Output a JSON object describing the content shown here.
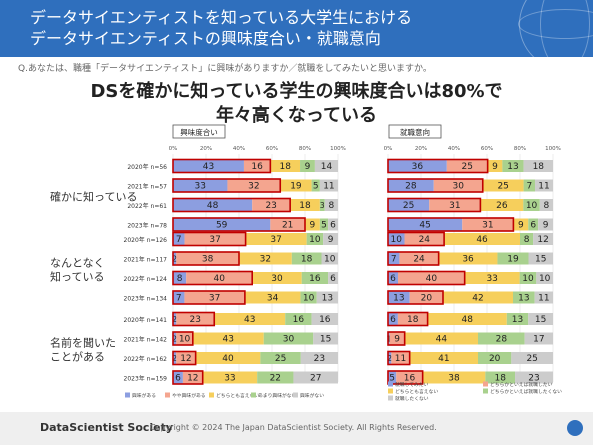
{
  "header": {
    "title_line1": "データサイエンティストを知っている大学生における",
    "title_line2": "データサイエンティストの興味度合い・就職意向"
  },
  "question": "Q.あなたは、職種「データサイエンティスト」に興味がありますか／就職をしてみたいと思いますか。",
  "headline": {
    "line1": "DSを確かに知っている学生の興味度合いは80%で",
    "line2": "年々高くなっている"
  },
  "footer": {
    "brand": "DataScientist Society",
    "copyright": "Copyright © 2024 The Japan DataScientist Society. All Rights Reserved."
  },
  "chart_data": {
    "type": "bar",
    "orientation": "horizontal",
    "stacked": "percent",
    "axis_ticks": [
      "0%",
      "20%",
      "40%",
      "60%",
      "80%",
      "100%"
    ],
    "groups": [
      "確かに知っている",
      "なんとなく\n知っている",
      "名前を聞いた\nことがある"
    ],
    "rows": [
      {
        "label": "2020年 n=56",
        "group": 0
      },
      {
        "label": "2021年 n=57",
        "group": 0
      },
      {
        "label": "2022年 n=61",
        "group": 0
      },
      {
        "label": "2023年 n=78",
        "group": 0
      },
      {
        "label": "2020年 n=126",
        "group": 1
      },
      {
        "label": "2021年 n=117",
        "group": 1
      },
      {
        "label": "2022年 n=124",
        "group": 1
      },
      {
        "label": "2023年 n=134",
        "group": 1
      },
      {
        "label": "2020年 n=141",
        "group": 2
      },
      {
        "label": "2021年 n=142",
        "group": 2
      },
      {
        "label": "2022年 n=162",
        "group": 2
      },
      {
        "label": "2023年 n=159",
        "group": 2
      }
    ],
    "colors": [
      "#8c9ee0",
      "#f4a58f",
      "#f6cf5c",
      "#a9d18e",
      "#cccccc"
    ],
    "highlight_color": "#c00000",
    "panels": [
      {
        "title": "興味度合い",
        "legend": [
          "興味がある",
          "やや興味がある",
          "どちらとも言えない",
          "あまり興味がない",
          "興味がない"
        ],
        "values": [
          [
            43,
            16,
            18,
            9,
            14
          ],
          [
            33,
            32,
            19,
            5,
            11
          ],
          [
            48,
            23,
            18,
            3,
            8
          ],
          [
            59,
            21,
            9,
            5,
            6
          ],
          [
            7,
            37,
            37,
            10,
            9
          ],
          [
            2,
            38,
            32,
            18,
            10
          ],
          [
            8,
            40,
            30,
            16,
            6
          ],
          [
            7,
            37,
            34,
            10,
            13
          ],
          [
            2,
            23,
            43,
            16,
            16
          ],
          [
            2,
            10,
            43,
            30,
            15
          ],
          [
            2,
            12,
            40,
            25,
            23
          ],
          [
            6,
            12,
            33,
            22,
            27
          ]
        ]
      },
      {
        "title": "就職意向",
        "legend": [
          "就職してみたい",
          "どちらかといえば就職したい",
          "どちらとも言えない",
          "どちらかといえば就職したくない",
          "就職したくない"
        ],
        "values": [
          [
            36,
            25,
            9,
            13,
            18
          ],
          [
            28,
            30,
            25,
            7,
            11
          ],
          [
            25,
            31,
            26,
            10,
            8
          ],
          [
            45,
            31,
            9,
            6,
            9
          ],
          [
            10,
            24,
            46,
            8,
            12
          ],
          [
            7,
            24,
            36,
            19,
            15
          ],
          [
            6,
            40,
            33,
            10,
            10
          ],
          [
            13,
            20,
            42,
            13,
            11
          ],
          [
            6,
            18,
            48,
            13,
            15
          ],
          [
            1,
            9,
            44,
            28,
            17
          ],
          [
            2,
            11,
            41,
            20,
            25
          ],
          [
            5,
            16,
            38,
            18,
            23
          ]
        ]
      }
    ]
  }
}
